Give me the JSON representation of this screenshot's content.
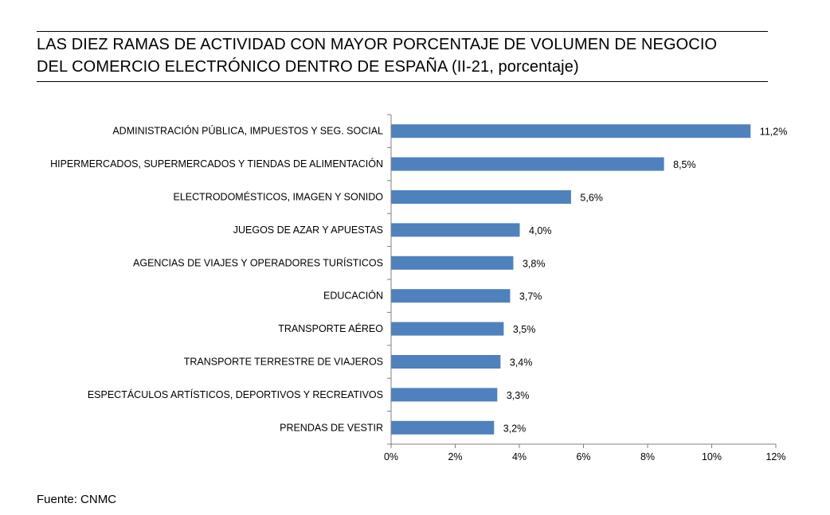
{
  "title": {
    "line1": "LAS DIEZ RAMAS DE ACTIVIDAD CON MAYOR PORCENTAJE DE VOLUMEN DE NEGOCIO",
    "line2": "DEL COMERCIO ELECTRÓNICO DENTRO DE ESPAÑA (II-21, porcentaje)"
  },
  "source": "Fuente: CNMC",
  "colors": {
    "bar": "#4f81bd",
    "axis": "#808080"
  },
  "chart_data": {
    "type": "bar",
    "orientation": "horizontal",
    "categories": [
      "ADMINISTRACIÓN PÚBLICA, IMPUESTOS Y SEG. SOCIAL",
      "HIPERMERCADOS, SUPERMERCADOS Y TIENDAS DE ALIMENTACIÓN",
      "ELECTRODOMÉSTICOS,  IMAGEN Y SONIDO",
      "JUEGOS DE AZAR Y APUESTAS",
      "AGENCIAS DE VIAJES Y OPERADORES TURÍSTICOS",
      "EDUCACIÓN",
      "TRANSPORTE AÉREO",
      "TRANSPORTE TERRESTRE DE VIAJEROS",
      "ESPECTÁCULOS ARTÍSTICOS, DEPORTIVOS Y RECREATIVOS",
      "PRENDAS DE VESTIR"
    ],
    "values": [
      11.2,
      8.5,
      5.6,
      4.0,
      3.8,
      3.7,
      3.5,
      3.4,
      3.3,
      3.2
    ],
    "value_labels": [
      "11,2%",
      "8,5%",
      "5,6%",
      "4,0%",
      "3,8%",
      "3,7%",
      "3,5%",
      "3,4%",
      "3,3%",
      "3,2%"
    ],
    "xlim": [
      0,
      12
    ],
    "x_ticks": [
      0,
      2,
      4,
      6,
      8,
      10,
      12
    ],
    "x_tick_labels": [
      "0%",
      "2%",
      "4%",
      "6%",
      "8%",
      "10%",
      "12%"
    ],
    "grid": false,
    "legend": "none"
  }
}
